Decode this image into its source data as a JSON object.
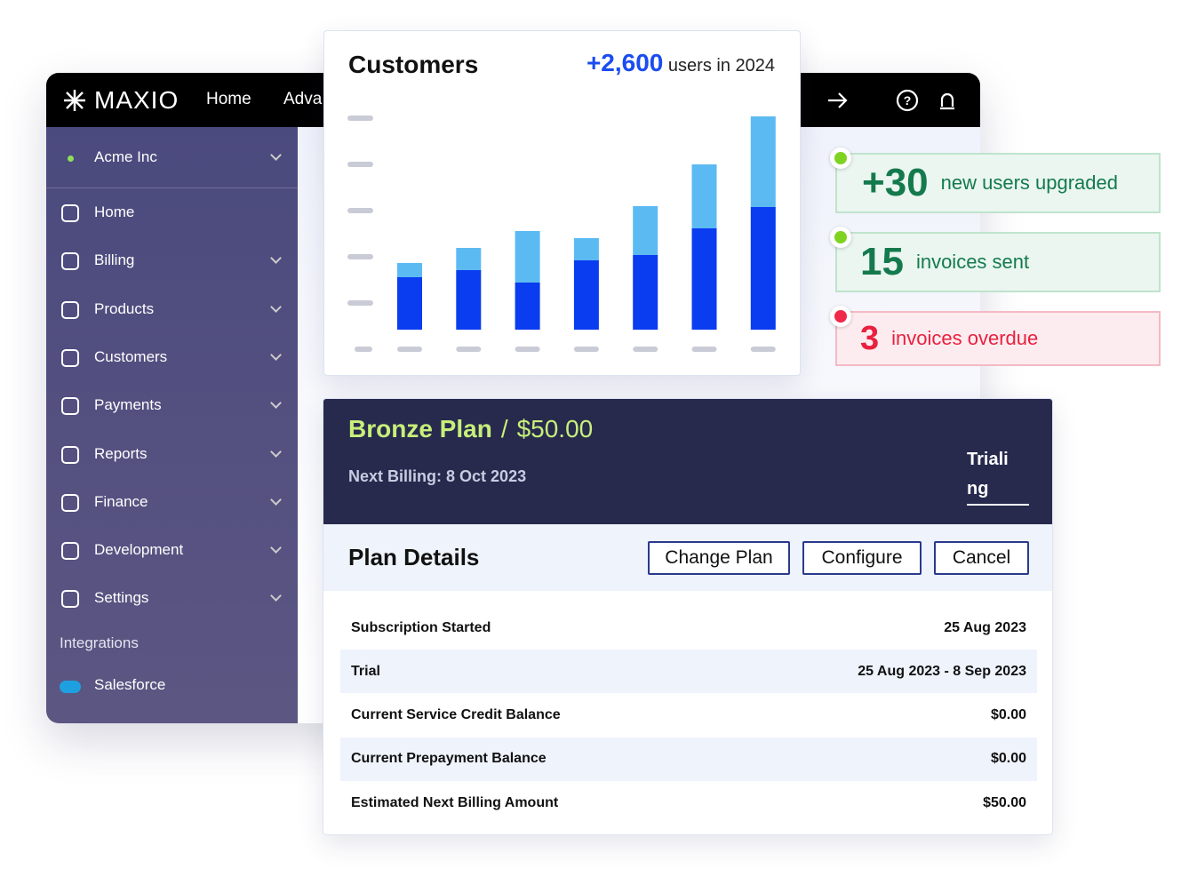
{
  "nav": {
    "brand": "MAXIO",
    "items": [
      "Home",
      "Adva"
    ]
  },
  "sidebar": {
    "account": "Acme Inc",
    "items": [
      "Home",
      "Billing",
      "Products",
      "Customers",
      "Payments",
      "Reports",
      "Finance",
      "Development",
      "Settings"
    ],
    "section": "Integrations",
    "integration": "Salesforce"
  },
  "customers_card": {
    "title": "Customers",
    "highlight": "+2,600",
    "suffix": "users in 2024",
    "chart_data": {
      "type": "stacked-bar",
      "categories": [
        null,
        null,
        null,
        null,
        null,
        null,
        null
      ],
      "ylim": [
        0,
        24
      ],
      "series": [
        {
          "color": "#0a3cf0",
          "values": [
            5.9,
            6.7,
            5.3,
            7.8,
            8.4,
            11.4,
            13.8
          ]
        },
        {
          "color": "#5cbaf2",
          "values": [
            1.6,
            2.5,
            5.8,
            2.5,
            5.5,
            7.2,
            10.2
          ]
        }
      ]
    }
  },
  "notifications": [
    {
      "value": "+30",
      "text": "new users upgraded",
      "tone": "good"
    },
    {
      "value": "15",
      "text": "invoices sent",
      "tone": "good"
    },
    {
      "value": "3",
      "text": "invoices overdue",
      "tone": "bad"
    }
  ],
  "plan": {
    "name": "Bronze Plan",
    "price": "$50.00",
    "next_billing_label": "Next Billing:",
    "next_billing": "8 Oct 2023",
    "status": "Trialing",
    "details_title": "Plan Details",
    "buttons": [
      "Change Plan",
      "Configure",
      "Cancel"
    ],
    "rows": [
      [
        "Subscription Started",
        "25 Aug 2023"
      ],
      [
        "Trial",
        "25 Aug 2023 - 8 Sep 2023"
      ],
      [
        "Current Service Credit Balance",
        "$0.00"
      ],
      [
        "Current Prepayment Balance",
        "$0.00"
      ],
      [
        "Estimated Next Billing Amount",
        "$50.00"
      ]
    ]
  }
}
